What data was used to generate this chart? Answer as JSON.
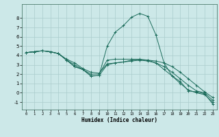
{
  "title": "",
  "xlabel": "Humidex (Indice chaleur)",
  "ylabel": "",
  "bg_color": "#cce8e8",
  "line_color": "#1a6b5a",
  "grid_color": "#aacccc",
  "xlim": [
    -0.5,
    23.5
  ],
  "ylim": [
    -1.8,
    9.5
  ],
  "yticks": [
    -1,
    0,
    1,
    2,
    3,
    4,
    5,
    6,
    7,
    8
  ],
  "xticks": [
    0,
    1,
    2,
    3,
    4,
    5,
    6,
    7,
    8,
    9,
    10,
    11,
    12,
    13,
    14,
    15,
    16,
    17,
    18,
    19,
    20,
    21,
    22,
    23
  ],
  "series": [
    {
      "x": [
        0,
        1,
        2,
        3,
        4,
        5,
        6,
        7,
        8,
        9,
        10,
        11,
        12,
        13,
        14,
        15,
        16,
        17,
        18,
        19,
        20,
        21,
        22,
        23
      ],
      "y": [
        4.3,
        4.4,
        4.5,
        4.4,
        4.2,
        3.5,
        2.8,
        2.5,
        1.8,
        1.85,
        3.0,
        3.2,
        3.3,
        3.4,
        3.5,
        3.5,
        3.4,
        3.2,
        2.8,
        2.2,
        1.5,
        0.8,
        0.1,
        -0.5
      ]
    },
    {
      "x": [
        0,
        1,
        2,
        3,
        4,
        5,
        6,
        7,
        8,
        9,
        10,
        11,
        12,
        13,
        14,
        15,
        16,
        17,
        18,
        19,
        20,
        21,
        22,
        23
      ],
      "y": [
        4.3,
        4.4,
        4.5,
        4.4,
        4.2,
        3.5,
        2.8,
        2.5,
        1.8,
        1.85,
        5.0,
        6.5,
        7.2,
        8.1,
        8.5,
        8.2,
        6.2,
        3.2,
        1.8,
        1.2,
        0.2,
        0.1,
        -0.1,
        -1.2
      ]
    },
    {
      "x": [
        0,
        1,
        2,
        3,
        4,
        5,
        6,
        7,
        8,
        9,
        10,
        11,
        12,
        13,
        14,
        15,
        16,
        17,
        18,
        19,
        20,
        21,
        22,
        23
      ],
      "y": [
        4.3,
        4.4,
        4.5,
        4.4,
        4.2,
        3.6,
        3.2,
        2.6,
        2.2,
        2.1,
        3.1,
        3.2,
        3.3,
        3.5,
        3.5,
        3.4,
        3.2,
        2.8,
        2.2,
        1.5,
        0.8,
        0.2,
        0.0,
        -0.8
      ]
    },
    {
      "x": [
        0,
        1,
        2,
        3,
        4,
        5,
        6,
        7,
        8,
        9,
        10,
        11,
        12,
        13,
        14,
        15,
        16,
        17,
        18,
        19,
        20,
        21,
        22,
        23
      ],
      "y": [
        4.3,
        4.4,
        4.5,
        4.4,
        4.2,
        3.5,
        3.0,
        2.5,
        2.0,
        2.0,
        3.5,
        3.6,
        3.6,
        3.6,
        3.6,
        3.5,
        3.2,
        2.5,
        1.8,
        1.0,
        0.3,
        0.0,
        -0.2,
        -1.0
      ]
    }
  ]
}
